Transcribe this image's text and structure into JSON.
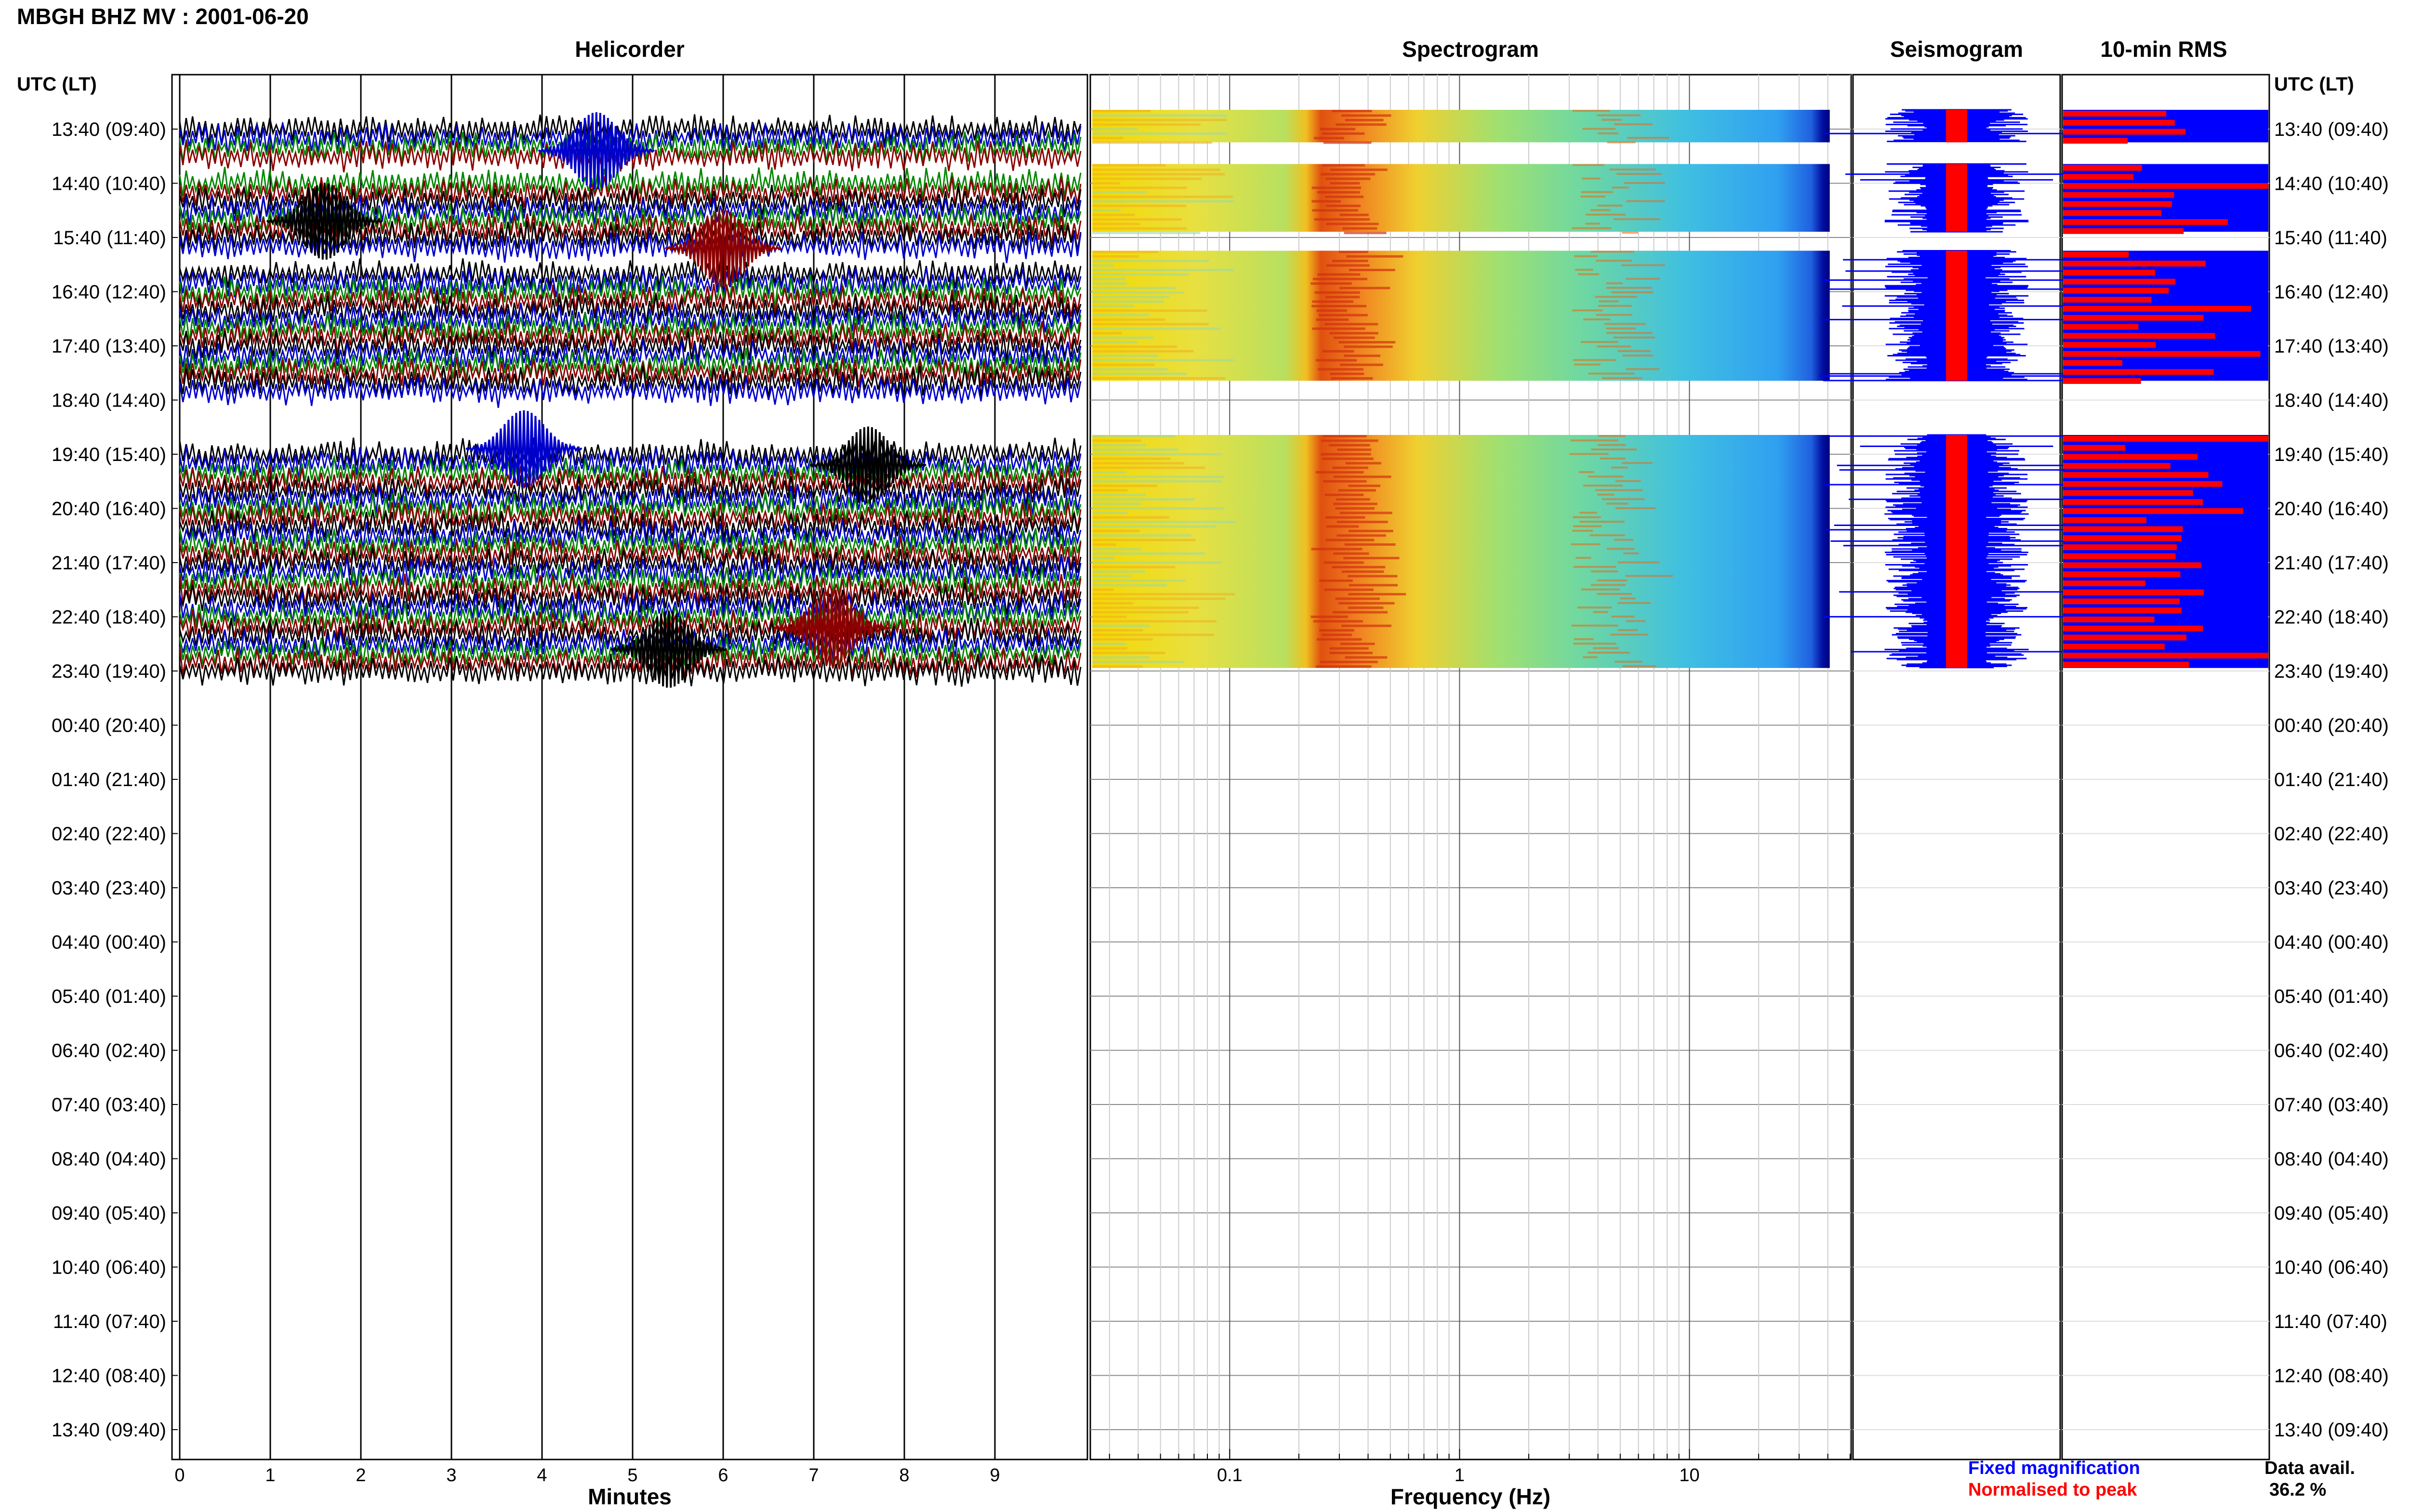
{
  "chart_data": {
    "type": "heatmap",
    "title": "MBGH BHZ MV : 2001-06-20",
    "panels": {
      "helicorder": {
        "title": "Helicorder",
        "xlabel": "Minutes",
        "xticks": [
          "0",
          "1",
          "2",
          "3",
          "4",
          "5",
          "6",
          "7",
          "8",
          "9"
        ],
        "xlim": [
          0,
          10
        ]
      },
      "spectrogram": {
        "title": "Spectrogram",
        "xlabel": "Frequency (Hz)",
        "xticks": [
          "0.1",
          "1",
          "10"
        ],
        "log_x": true,
        "xlim": [
          0.025,
          50
        ]
      },
      "seismogram": {
        "title": "Seismogram"
      },
      "rms": {
        "title": "10-min RMS"
      }
    },
    "y_axis_label": "UTC (LT)",
    "rows": [
      "13:40 (09:40)",
      "14:40 (10:40)",
      "15:40 (11:40)",
      "16:40 (12:40)",
      "17:40 (13:40)",
      "18:40 (14:40)",
      "19:40 (15:40)",
      "20:40 (16:40)",
      "21:40 (17:40)",
      "22:40 (18:40)",
      "23:40 (19:40)",
      "00:40 (20:40)",
      "01:40 (21:40)",
      "02:40 (22:40)",
      "03:40 (23:40)",
      "04:40 (00:40)",
      "05:40 (01:40)",
      "06:40 (02:40)",
      "07:40 (03:40)",
      "08:40 (04:40)",
      "09:40 (05:40)",
      "10:40 (06:40)",
      "11:40 (07:40)",
      "12:40 (08:40)",
      "13:40 (09:40)"
    ],
    "data_gaps_hours": [
      [
        0.6,
        1.0
      ],
      [
        2.25,
        2.6
      ],
      [
        5.0,
        6.0
      ]
    ],
    "data_until_hour": 10.3,
    "legend": {
      "fixed": "Fixed magnification",
      "normalised": "Normalised to peak",
      "fixed_color": "#0000ff",
      "normalised_color": "#ff0000",
      "placement": "bottom-right"
    },
    "data_avail_label": "Data avail.",
    "data_avail_value": "36.2 %",
    "trace_colors": [
      "#000000",
      "#0000cc",
      "#008800",
      "#8b0000"
    ],
    "spectral_peak_hz": 0.3
  }
}
